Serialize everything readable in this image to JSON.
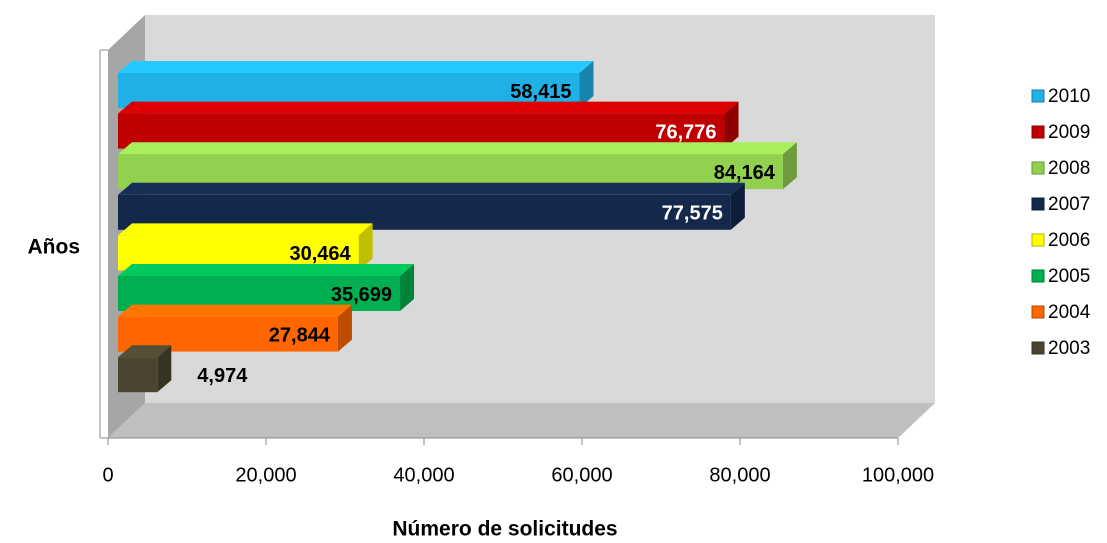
{
  "chart_data": {
    "type": "bar",
    "orientation": "horizontal",
    "x_label": "Número de solicitudes",
    "y_label": "Años",
    "series": [
      {
        "name": "2010",
        "color": "#1fb0e6",
        "values": [
          58415
        ],
        "value_labels": [
          "58,415"
        ]
      },
      {
        "name": "2009",
        "color": "#c00000",
        "values": [
          76776
        ],
        "value_labels": [
          "76,776"
        ]
      },
      {
        "name": "2008",
        "color": "#92d050",
        "values": [
          84164
        ],
        "value_labels": [
          "84,164"
        ]
      },
      {
        "name": "2007",
        "color": "#14284b",
        "values": [
          77575
        ],
        "value_labels": [
          "77,575"
        ]
      },
      {
        "name": "2006",
        "color": "#ffff00",
        "values": [
          30464
        ],
        "value_labels": [
          "30,464"
        ]
      },
      {
        "name": "2005",
        "color": "#00b050",
        "values": [
          35699
        ],
        "value_labels": [
          "35,699"
        ]
      },
      {
        "name": "2004",
        "color": "#ff6600",
        "values": [
          27844
        ],
        "value_labels": [
          "27,844"
        ]
      },
      {
        "name": "2003",
        "color": "#4a4530",
        "values": [
          4974
        ],
        "value_labels": [
          "4,974"
        ]
      }
    ],
    "xlim": [
      0,
      100000
    ],
    "xticks": [
      0,
      {
        "value": 20000,
        "label": "20,000"
      },
      {
        "value": 40000,
        "label": "40,000"
      },
      {
        "value": 60000,
        "label": "60,000"
      },
      {
        "value": 80000,
        "label": "80,000"
      },
      {
        "value": 100000,
        "label": "100,000"
      }
    ],
    "legend": "right"
  }
}
